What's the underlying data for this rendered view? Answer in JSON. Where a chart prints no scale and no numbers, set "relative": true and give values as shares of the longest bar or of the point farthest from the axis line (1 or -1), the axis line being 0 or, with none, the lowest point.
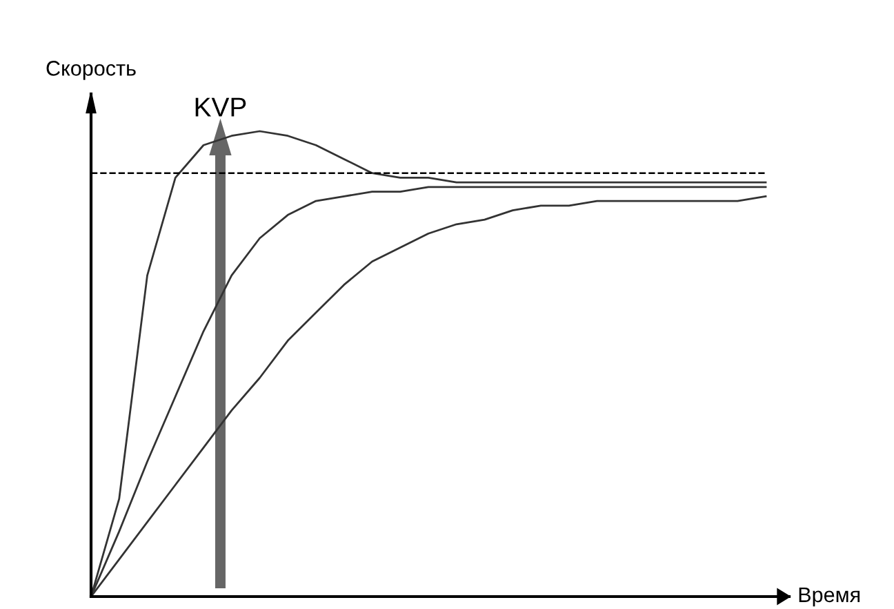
{
  "chart_data": {
    "type": "line",
    "relative": true,
    "xlabel": "Время",
    "ylabel": "Скорость",
    "categories": [
      null,
      null,
      null,
      null,
      null,
      null,
      null,
      null,
      null,
      null,
      null,
      null,
      null,
      null,
      null,
      null,
      null,
      null,
      null,
      null,
      null,
      null,
      null,
      null,
      null
    ],
    "series": [
      {
        "color": "#333333",
        "values": [
          0,
          0.21,
          0.69,
          0.9,
          0.97,
          0.99,
          1.0,
          0.99,
          0.97,
          0.94,
          0.91,
          0.9,
          0.9,
          0.89,
          0.89,
          0.89,
          0.89,
          0.89,
          0.89,
          0.89,
          0.89,
          0.89,
          0.89,
          0.89,
          0.89
        ]
      },
      {
        "color": "#333333",
        "values": [
          0,
          0.14,
          0.29,
          0.43,
          0.57,
          0.69,
          0.77,
          0.82,
          0.85,
          0.86,
          0.87,
          0.87,
          0.88,
          0.88,
          0.88,
          0.88,
          0.88,
          0.88,
          0.88,
          0.88,
          0.88,
          0.88,
          0.88,
          0.88,
          0.88
        ]
      },
      {
        "color": "#333333",
        "values": [
          0,
          0.08,
          0.16,
          0.24,
          0.32,
          0.4,
          0.47,
          0.55,
          0.61,
          0.67,
          0.72,
          0.75,
          0.78,
          0.8,
          0.81,
          0.83,
          0.84,
          0.84,
          0.85,
          0.85,
          0.85,
          0.85,
          0.85,
          0.85,
          0.86
        ]
      }
    ],
    "ref_lines": [
      {
        "axis": "y",
        "value": 0.91,
        "color": "#000000",
        "line_style": "dashed"
      }
    ],
    "annotations": [
      "KVP"
    ],
    "legend": false,
    "marker": "none",
    "line_style": "solid"
  }
}
